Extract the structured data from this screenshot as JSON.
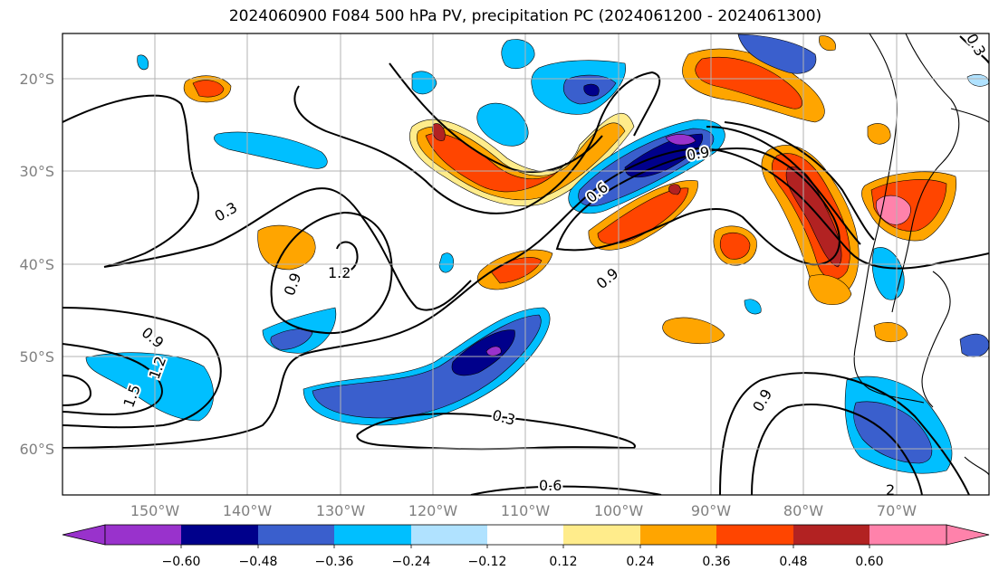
{
  "title": "2024060900 F084 500 hPa PV, precipitation PC (2024061200 - 2024061300)",
  "lat_labels": [
    "20°S",
    "30°S",
    "40°S",
    "50°S",
    "60°S"
  ],
  "lon_labels": [
    "150°W",
    "140°W",
    "130°W",
    "120°W",
    "110°W",
    "100°W",
    "90°W",
    "80°W",
    "70°W"
  ],
  "pv_contour_labels": [
    "0.3",
    "0.9",
    "1.2",
    "0.9",
    "1.2",
    "1.5",
    "0.6",
    "0.9",
    "0.9",
    "0.3",
    "0.6",
    "0.9",
    "0.3",
    "2"
  ],
  "colorbar": {
    "tick_labels": [
      "−0.60",
      "−0.48",
      "−0.36",
      "−0.24",
      "−0.12",
      "0.12",
      "0.24",
      "0.36",
      "0.48",
      "0.60"
    ],
    "colors": [
      "#9932cc",
      "#00008b",
      "#3a5fcd",
      "#00bfff",
      "#b0e2ff",
      "#ffffff",
      "#ffec8b",
      "#ffa500",
      "#ff4500",
      "#b22222",
      "#ff82ab"
    ]
  }
}
